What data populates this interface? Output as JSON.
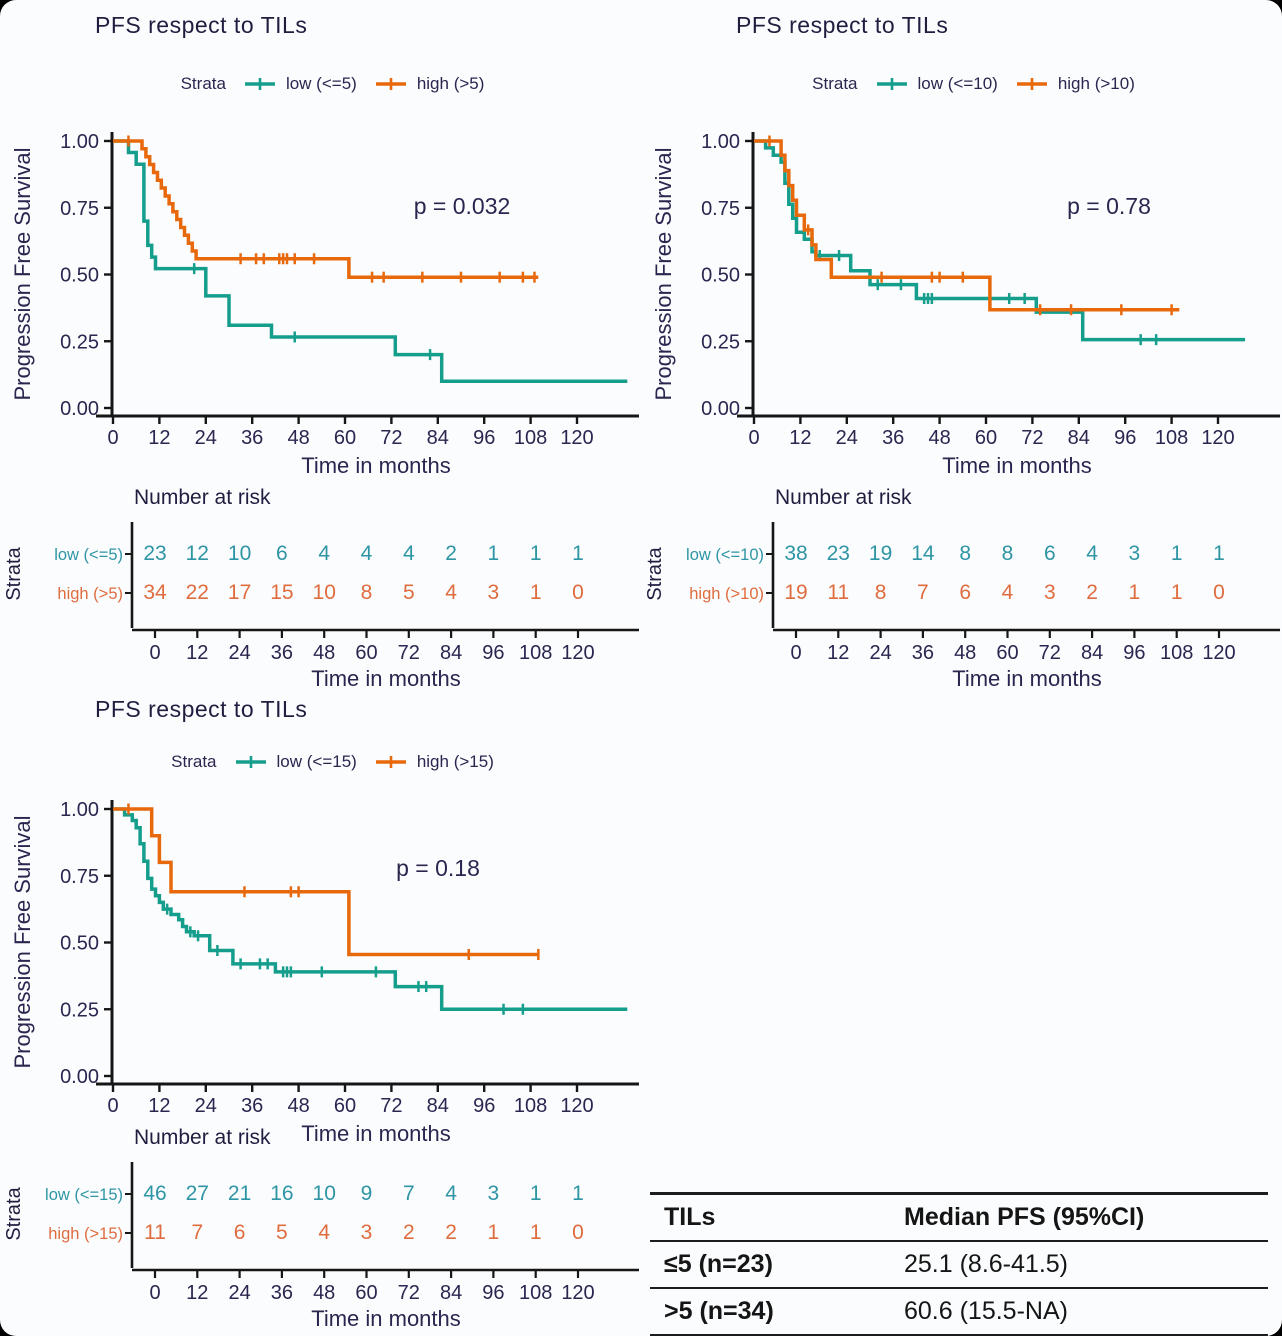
{
  "colors": {
    "teal": "#169E8D",
    "orange": "#E8690B",
    "risk_teal": "#2E95A5",
    "risk_orange": "#DF6C3F",
    "axis_text": "#2B2550",
    "title_text": "#201D40",
    "axis_line": "#161616"
  },
  "chart_data": [
    {
      "type": "line",
      "title": "PFS respect to TILs",
      "legend_label": "Strata",
      "p_label": "p = 0.032",
      "xlabel": "Time in months",
      "ylabel": "Progression Free Survival",
      "x_ticks": [
        0,
        12,
        24,
        36,
        48,
        60,
        72,
        84,
        96,
        108,
        120
      ],
      "y_ticks": [
        0,
        0.25,
        0.5,
        0.75,
        1
      ],
      "xlim": [
        0,
        132
      ],
      "ylim": [
        0,
        1
      ],
      "series": [
        {
          "name": "low (<=5)",
          "color": "teal",
          "end": 133,
          "steps": [
            [
              0,
              1
            ],
            [
              4,
              0.957
            ],
            [
              6,
              0.913
            ],
            [
              8,
              0.7
            ],
            [
              9,
              0.609
            ],
            [
              10,
              0.565
            ],
            [
              11,
              0.522
            ],
            [
              24,
              0.42
            ],
            [
              30,
              0.31
            ],
            [
              41,
              0.266
            ],
            [
              73,
              0.2
            ],
            [
              85,
              0.1
            ]
          ],
          "censors": [
            21,
            47,
            82
          ]
        },
        {
          "name": "high (>5)",
          "color": "orange",
          "end": 110,
          "steps": [
            [
              0,
              1
            ],
            [
              7.5,
              0.971
            ],
            [
              8.5,
              0.941
            ],
            [
              9.5,
              0.912
            ],
            [
              10.5,
              0.882
            ],
            [
              11.5,
              0.853
            ],
            [
              12.5,
              0.824
            ],
            [
              13.5,
              0.794
            ],
            [
              14.5,
              0.765
            ],
            [
              15.5,
              0.735
            ],
            [
              16.5,
              0.706
            ],
            [
              17.5,
              0.676
            ],
            [
              18.5,
              0.647
            ],
            [
              19.5,
              0.617
            ],
            [
              20.5,
              0.588
            ],
            [
              21.5,
              0.559
            ],
            [
              61,
              0.49
            ]
          ],
          "censors": [
            4,
            33,
            37,
            39,
            43,
            44,
            45,
            47,
            52,
            67,
            70,
            80,
            90,
            100,
            106,
            109
          ]
        }
      ],
      "risk_table": {
        "header": "Number at risk",
        "axis_label": "Strata",
        "xlabel": "Time in months",
        "times": [
          0,
          12,
          24,
          36,
          48,
          60,
          72,
          84,
          96,
          108,
          120
        ],
        "rows": [
          {
            "label": "low (<=5)",
            "color": "teal",
            "counts": [
              23,
              12,
              10,
              6,
              4,
              4,
              4,
              2,
              1,
              1,
              1
            ]
          },
          {
            "label": "high (>5)",
            "color": "orange",
            "counts": [
              34,
              22,
              17,
              15,
              10,
              8,
              5,
              4,
              3,
              1,
              0
            ]
          }
        ]
      }
    },
    {
      "type": "line",
      "title": "PFS respect to TILs",
      "legend_label": "Strata",
      "p_label": "p = 0.78",
      "xlabel": "Time in months",
      "ylabel": "Progression Free Survival",
      "x_ticks": [
        0,
        12,
        24,
        36,
        48,
        60,
        72,
        84,
        96,
        108,
        120
      ],
      "y_ticks": [
        0,
        0.25,
        0.5,
        0.75,
        1
      ],
      "xlim": [
        0,
        132
      ],
      "ylim": [
        0,
        1
      ],
      "series": [
        {
          "name": "low (<=10)",
          "color": "teal",
          "end": 127,
          "steps": [
            [
              0,
              1
            ],
            [
              3,
              0.974
            ],
            [
              5,
              0.947
            ],
            [
              7,
              0.921
            ],
            [
              8,
              0.842
            ],
            [
              9,
              0.763
            ],
            [
              10,
              0.711
            ],
            [
              11,
              0.658
            ],
            [
              13,
              0.632
            ],
            [
              15,
              0.585
            ],
            [
              16,
              0.571
            ],
            [
              25,
              0.514
            ],
            [
              30,
              0.462
            ],
            [
              42,
              0.41
            ],
            [
              73,
              0.359
            ],
            [
              85,
              0.256
            ]
          ],
          "censors": [
            17,
            22,
            32,
            38,
            44,
            45,
            46,
            66,
            70,
            100,
            104
          ]
        },
        {
          "name": "high (>10)",
          "color": "orange",
          "end": 110,
          "steps": [
            [
              0,
              1
            ],
            [
              7,
              0.947
            ],
            [
              8,
              0.889
            ],
            [
              9,
              0.833
            ],
            [
              10,
              0.778
            ],
            [
              11,
              0.722
            ],
            [
              13,
              0.667
            ],
            [
              15,
              0.611
            ],
            [
              16,
              0.556
            ],
            [
              20,
              0.49
            ],
            [
              61,
              0.368
            ]
          ],
          "censors": [
            4,
            14,
            33,
            46,
            48,
            54,
            74,
            82,
            95,
            108
          ]
        }
      ],
      "risk_table": {
        "header": "Number at risk",
        "axis_label": "Strata",
        "xlabel": "Time in months",
        "times": [
          0,
          12,
          24,
          36,
          48,
          60,
          72,
          84,
          96,
          108,
          120
        ],
        "rows": [
          {
            "label": "low (<=10)",
            "color": "teal",
            "counts": [
              38,
              23,
              19,
              14,
              8,
              8,
              6,
              4,
              3,
              1,
              1
            ]
          },
          {
            "label": "high (>10)",
            "color": "orange",
            "counts": [
              19,
              11,
              8,
              7,
              6,
              4,
              3,
              2,
              1,
              1,
              0
            ]
          }
        ]
      }
    },
    {
      "type": "line",
      "title": "PFS respect to TILs",
      "legend_label": "Strata",
      "p_label": "p = 0.18",
      "xlabel": "Time in months",
      "ylabel": "Progression Free Survival",
      "x_ticks": [
        0,
        12,
        24,
        36,
        48,
        60,
        72,
        84,
        96,
        108,
        120
      ],
      "y_ticks": [
        0,
        0.25,
        0.5,
        0.75,
        1
      ],
      "xlim": [
        0,
        132
      ],
      "ylim": [
        0,
        1
      ],
      "series": [
        {
          "name": "low (<=15)",
          "color": "teal",
          "end": 133,
          "steps": [
            [
              0,
              1
            ],
            [
              3,
              0.978
            ],
            [
              5,
              0.957
            ],
            [
              6,
              0.93
            ],
            [
              7,
              0.87
            ],
            [
              8,
              0.804
            ],
            [
              9,
              0.74
            ],
            [
              10,
              0.7
            ],
            [
              11,
              0.675
            ],
            [
              12,
              0.65
            ],
            [
              13,
              0.625
            ],
            [
              15,
              0.605
            ],
            [
              17,
              0.585
            ],
            [
              18,
              0.56
            ],
            [
              19,
              0.54
            ],
            [
              21,
              0.525
            ],
            [
              25,
              0.47
            ],
            [
              31,
              0.42
            ],
            [
              42,
              0.39
            ],
            [
              73,
              0.335
            ],
            [
              85,
              0.25
            ]
          ],
          "censors": [
            14,
            20,
            22,
            27,
            33,
            38,
            40,
            44,
            45,
            46,
            54,
            68,
            79,
            81,
            101,
            106
          ]
        },
        {
          "name": "high (>15)",
          "color": "orange",
          "end": 110,
          "steps": [
            [
              0,
              1
            ],
            [
              10,
              0.9
            ],
            [
              12,
              0.8
            ],
            [
              15,
              0.69
            ],
            [
              61,
              0.455
            ]
          ],
          "censors": [
            4,
            34,
            46,
            48,
            92,
            110
          ]
        }
      ],
      "risk_table": {
        "header": "Number at risk",
        "axis_label": "Strata",
        "xlabel": "Time in months",
        "times": [
          0,
          12,
          24,
          36,
          48,
          60,
          72,
          84,
          96,
          108,
          120
        ],
        "rows": [
          {
            "label": "low (<=15)",
            "color": "teal",
            "counts": [
              46,
              27,
              21,
              16,
              10,
              9,
              7,
              4,
              3,
              1,
              1
            ]
          },
          {
            "label": "high (>15)",
            "color": "orange",
            "counts": [
              11,
              7,
              6,
              5,
              4,
              3,
              2,
              2,
              1,
              1,
              0
            ]
          }
        ]
      }
    }
  ],
  "summary_table": {
    "headers": [
      "TILs",
      "Median PFS (95%CI)"
    ],
    "rows": [
      [
        "≤5 (n=23)",
        "25.1 (8.6-41.5)"
      ],
      [
        ">5 (n=34)",
        "60.6 (15.5-NA)"
      ]
    ]
  }
}
